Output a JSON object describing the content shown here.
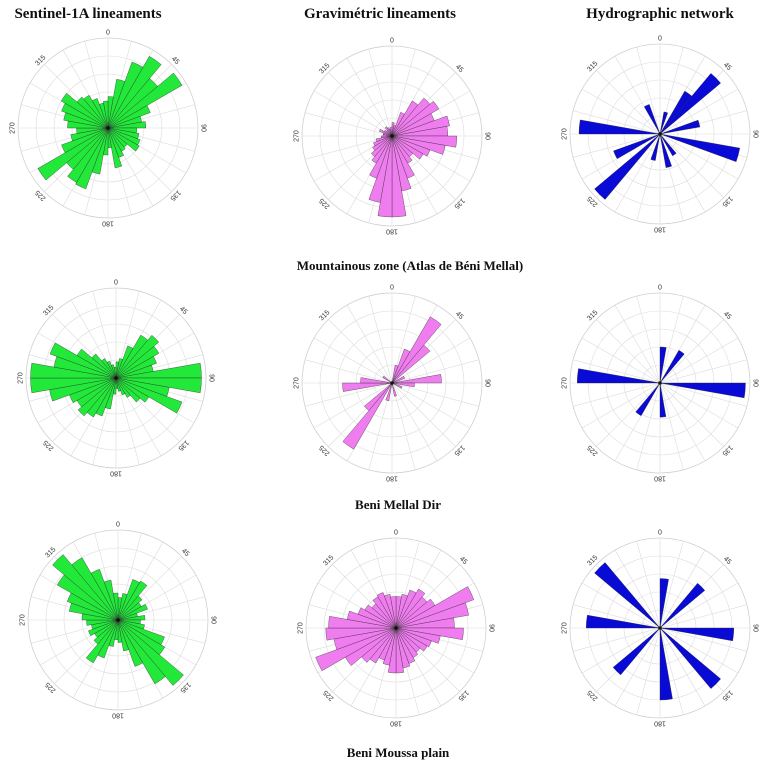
{
  "columns": [
    {
      "title": "Sentinel-1A lineaments",
      "color": "#22e83a"
    },
    {
      "title": "Gravimétric lineaments",
      "color": "#f07df0"
    },
    {
      "title": "Hydrographic network",
      "color": "#0a0ad6"
    }
  ],
  "zones": [
    {
      "label": "Mountainous zone (Atlas de Béni Mellal)"
    },
    {
      "label": "Beni Mellal  Dir"
    },
    {
      "label": "Beni Moussa plain"
    }
  ],
  "angle_ticks": [
    "0",
    "45",
    "90",
    "135",
    "180",
    "225",
    "270",
    "315"
  ],
  "chart_data": [
    {
      "type": "rose",
      "row": 0,
      "col": 0,
      "bin_width_deg": 10,
      "petals": [
        {
          "angle": 5,
          "value": 0.35
        },
        {
          "angle": 15,
          "value": 0.55
        },
        {
          "angle": 25,
          "value": 0.78
        },
        {
          "angle": 35,
          "value": 0.92
        },
        {
          "angle": 45,
          "value": 0.72
        },
        {
          "angle": 55,
          "value": 0.95
        },
        {
          "angle": 65,
          "value": 0.5
        },
        {
          "angle": 75,
          "value": 0.38
        },
        {
          "angle": 85,
          "value": 0.42
        },
        {
          "angle": 95,
          "value": 0.32
        },
        {
          "angle": 105,
          "value": 0.35
        },
        {
          "angle": 115,
          "value": 0.38
        },
        {
          "angle": 125,
          "value": 0.4
        },
        {
          "angle": 135,
          "value": 0.28
        },
        {
          "angle": 145,
          "value": 0.3
        },
        {
          "angle": 155,
          "value": 0.35
        },
        {
          "angle": 165,
          "value": 0.45
        },
        {
          "angle": 175,
          "value": 0.22
        },
        {
          "angle": 185,
          "value": 0.3
        },
        {
          "angle": 195,
          "value": 0.52
        },
        {
          "angle": 205,
          "value": 0.72
        },
        {
          "angle": 215,
          "value": 0.7
        },
        {
          "angle": 225,
          "value": 0.6
        },
        {
          "angle": 235,
          "value": 0.9
        },
        {
          "angle": 245,
          "value": 0.55
        },
        {
          "angle": 255,
          "value": 0.42
        },
        {
          "angle": 265,
          "value": 0.35
        },
        {
          "angle": 275,
          "value": 0.45
        },
        {
          "angle": 285,
          "value": 0.5
        },
        {
          "angle": 295,
          "value": 0.55
        },
        {
          "angle": 305,
          "value": 0.6
        },
        {
          "angle": 315,
          "value": 0.45
        },
        {
          "angle": 325,
          "value": 0.42
        },
        {
          "angle": 335,
          "value": 0.35
        },
        {
          "angle": 345,
          "value": 0.28
        },
        {
          "angle": 355,
          "value": 0.3
        }
      ]
    },
    {
      "type": "rose",
      "row": 0,
      "col": 1,
      "bin_width_deg": 10,
      "petals": [
        {
          "angle": 5,
          "value": 0.15
        },
        {
          "angle": 15,
          "value": 0.12
        },
        {
          "angle": 25,
          "value": 0.28
        },
        {
          "angle": 35,
          "value": 0.45
        },
        {
          "angle": 45,
          "value": 0.55
        },
        {
          "angle": 55,
          "value": 0.6
        },
        {
          "angle": 65,
          "value": 0.5
        },
        {
          "angle": 75,
          "value": 0.65
        },
        {
          "angle": 85,
          "value": 0.62
        },
        {
          "angle": 95,
          "value": 0.72
        },
        {
          "angle": 105,
          "value": 0.6
        },
        {
          "angle": 115,
          "value": 0.45
        },
        {
          "angle": 125,
          "value": 0.4
        },
        {
          "angle": 135,
          "value": 0.3
        },
        {
          "angle": 145,
          "value": 0.35
        },
        {
          "angle": 155,
          "value": 0.5
        },
        {
          "angle": 165,
          "value": 0.62
        },
        {
          "angle": 175,
          "value": 0.9
        },
        {
          "angle": 185,
          "value": 0.9
        },
        {
          "angle": 195,
          "value": 0.75
        },
        {
          "angle": 205,
          "value": 0.5
        },
        {
          "angle": 215,
          "value": 0.35
        },
        {
          "angle": 225,
          "value": 0.3
        },
        {
          "angle": 235,
          "value": 0.25
        },
        {
          "angle": 245,
          "value": 0.22
        },
        {
          "angle": 255,
          "value": 0.18
        },
        {
          "angle": 265,
          "value": 0.12
        },
        {
          "angle": 275,
          "value": 0.1
        },
        {
          "angle": 285,
          "value": 0.1
        },
        {
          "angle": 295,
          "value": 0.15
        },
        {
          "angle": 305,
          "value": 0.1
        },
        {
          "angle": 315,
          "value": 0.08
        },
        {
          "angle": 325,
          "value": 0.12
        },
        {
          "angle": 335,
          "value": 0.1
        },
        {
          "angle": 345,
          "value": 0.08
        },
        {
          "angle": 355,
          "value": 0.1
        }
      ]
    },
    {
      "type": "rose",
      "row": 0,
      "col": 2,
      "bin_width_deg": 10,
      "petals": [
        {
          "angle": 15,
          "value": 0.25
        },
        {
          "angle": 35,
          "value": 0.55
        },
        {
          "angle": 45,
          "value": 0.88
        },
        {
          "angle": 75,
          "value": 0.45
        },
        {
          "angle": 105,
          "value": 0.9
        },
        {
          "angle": 145,
          "value": 0.28
        },
        {
          "angle": 165,
          "value": 0.38
        },
        {
          "angle": 195,
          "value": 0.3
        },
        {
          "angle": 225,
          "value": 0.95
        },
        {
          "angle": 245,
          "value": 0.55
        },
        {
          "angle": 275,
          "value": 0.9
        },
        {
          "angle": 335,
          "value": 0.35
        }
      ]
    },
    {
      "type": "rose",
      "row": 1,
      "col": 0,
      "bin_width_deg": 10,
      "petals": [
        {
          "angle": 5,
          "value": 0.18
        },
        {
          "angle": 15,
          "value": 0.22
        },
        {
          "angle": 25,
          "value": 0.38
        },
        {
          "angle": 35,
          "value": 0.55
        },
        {
          "angle": 45,
          "value": 0.62
        },
        {
          "angle": 55,
          "value": 0.55
        },
        {
          "angle": 65,
          "value": 0.48
        },
        {
          "angle": 75,
          "value": 0.42
        },
        {
          "angle": 85,
          "value": 0.95
        },
        {
          "angle": 95,
          "value": 0.95
        },
        {
          "angle": 105,
          "value": 0.6
        },
        {
          "angle": 115,
          "value": 0.78
        },
        {
          "angle": 125,
          "value": 0.42
        },
        {
          "angle": 135,
          "value": 0.35
        },
        {
          "angle": 145,
          "value": 0.25
        },
        {
          "angle": 155,
          "value": 0.2
        },
        {
          "angle": 165,
          "value": 0.15
        },
        {
          "angle": 175,
          "value": 0.12
        },
        {
          "angle": 185,
          "value": 0.18
        },
        {
          "angle": 195,
          "value": 0.35
        },
        {
          "angle": 205,
          "value": 0.45
        },
        {
          "angle": 215,
          "value": 0.5
        },
        {
          "angle": 225,
          "value": 0.55
        },
        {
          "angle": 235,
          "value": 0.5
        },
        {
          "angle": 245,
          "value": 0.55
        },
        {
          "angle": 255,
          "value": 0.75
        },
        {
          "angle": 265,
          "value": 0.95
        },
        {
          "angle": 275,
          "value": 0.95
        },
        {
          "angle": 285,
          "value": 0.7
        },
        {
          "angle": 295,
          "value": 0.78
        },
        {
          "angle": 305,
          "value": 0.5
        },
        {
          "angle": 315,
          "value": 0.35
        },
        {
          "angle": 325,
          "value": 0.25
        },
        {
          "angle": 335,
          "value": 0.2
        },
        {
          "angle": 345,
          "value": 0.15
        },
        {
          "angle": 355,
          "value": 0.12
        }
      ]
    },
    {
      "type": "rose",
      "row": 1,
      "col": 1,
      "bin_width_deg": 10,
      "petals": [
        {
          "angle": 15,
          "value": 0.2
        },
        {
          "angle": 25,
          "value": 0.4
        },
        {
          "angle": 35,
          "value": 0.85
        },
        {
          "angle": 45,
          "value": 0.55
        },
        {
          "angle": 65,
          "value": 0.15
        },
        {
          "angle": 85,
          "value": 0.55
        },
        {
          "angle": 95,
          "value": 0.25
        },
        {
          "angle": 115,
          "value": 0.12
        },
        {
          "angle": 165,
          "value": 0.15
        },
        {
          "angle": 195,
          "value": 0.2
        },
        {
          "angle": 215,
          "value": 0.85
        },
        {
          "angle": 225,
          "value": 0.4
        },
        {
          "angle": 265,
          "value": 0.55
        },
        {
          "angle": 275,
          "value": 0.35
        },
        {
          "angle": 305,
          "value": 0.12
        }
      ]
    },
    {
      "type": "rose",
      "row": 1,
      "col": 2,
      "bin_width_deg": 10,
      "petals": [
        {
          "angle": 5,
          "value": 0.4
        },
        {
          "angle": 35,
          "value": 0.42
        },
        {
          "angle": 95,
          "value": 0.95
        },
        {
          "angle": 175,
          "value": 0.38
        },
        {
          "angle": 215,
          "value": 0.42
        },
        {
          "angle": 275,
          "value": 0.92
        }
      ]
    },
    {
      "type": "rose",
      "row": 2,
      "col": 0,
      "bin_width_deg": 10,
      "petals": [
        {
          "angle": 5,
          "value": 0.25
        },
        {
          "angle": 15,
          "value": 0.3
        },
        {
          "angle": 25,
          "value": 0.48
        },
        {
          "angle": 35,
          "value": 0.5
        },
        {
          "angle": 45,
          "value": 0.35
        },
        {
          "angle": 55,
          "value": 0.3
        },
        {
          "angle": 65,
          "value": 0.35
        },
        {
          "angle": 75,
          "value": 0.22
        },
        {
          "angle": 85,
          "value": 0.3
        },
        {
          "angle": 95,
          "value": 0.25
        },
        {
          "angle": 105,
          "value": 0.3
        },
        {
          "angle": 115,
          "value": 0.55
        },
        {
          "angle": 125,
          "value": 0.6
        },
        {
          "angle": 135,
          "value": 0.95
        },
        {
          "angle": 145,
          "value": 0.82
        },
        {
          "angle": 155,
          "value": 0.55
        },
        {
          "angle": 165,
          "value": 0.35
        },
        {
          "angle": 175,
          "value": 0.25
        },
        {
          "angle": 185,
          "value": 0.22
        },
        {
          "angle": 195,
          "value": 0.3
        },
        {
          "angle": 205,
          "value": 0.45
        },
        {
          "angle": 215,
          "value": 0.55
        },
        {
          "angle": 225,
          "value": 0.35
        },
        {
          "angle": 235,
          "value": 0.3
        },
        {
          "angle": 245,
          "value": 0.35
        },
        {
          "angle": 255,
          "value": 0.3
        },
        {
          "angle": 265,
          "value": 0.35
        },
        {
          "angle": 275,
          "value": 0.4
        },
        {
          "angle": 285,
          "value": 0.55
        },
        {
          "angle": 295,
          "value": 0.6
        },
        {
          "angle": 305,
          "value": 0.78
        },
        {
          "angle": 315,
          "value": 0.95
        },
        {
          "angle": 325,
          "value": 0.8
        },
        {
          "angle": 335,
          "value": 0.6
        },
        {
          "angle": 345,
          "value": 0.45
        },
        {
          "angle": 355,
          "value": 0.3
        }
      ]
    },
    {
      "type": "rose",
      "row": 2,
      "col": 1,
      "bin_width_deg": 10,
      "petals": [
        {
          "angle": 5,
          "value": 0.35
        },
        {
          "angle": 15,
          "value": 0.38
        },
        {
          "angle": 25,
          "value": 0.45
        },
        {
          "angle": 35,
          "value": 0.5
        },
        {
          "angle": 45,
          "value": 0.45
        },
        {
          "angle": 55,
          "value": 0.5
        },
        {
          "angle": 65,
          "value": 0.92
        },
        {
          "angle": 75,
          "value": 0.82
        },
        {
          "angle": 85,
          "value": 0.65
        },
        {
          "angle": 95,
          "value": 0.75
        },
        {
          "angle": 105,
          "value": 0.5
        },
        {
          "angle": 115,
          "value": 0.42
        },
        {
          "angle": 125,
          "value": 0.4
        },
        {
          "angle": 135,
          "value": 0.35
        },
        {
          "angle": 145,
          "value": 0.38
        },
        {
          "angle": 155,
          "value": 0.42
        },
        {
          "angle": 165,
          "value": 0.45
        },
        {
          "angle": 175,
          "value": 0.5
        },
        {
          "angle": 185,
          "value": 0.5
        },
        {
          "angle": 195,
          "value": 0.42
        },
        {
          "angle": 205,
          "value": 0.38
        },
        {
          "angle": 215,
          "value": 0.45
        },
        {
          "angle": 225,
          "value": 0.5
        },
        {
          "angle": 235,
          "value": 0.65
        },
        {
          "angle": 245,
          "value": 0.95
        },
        {
          "angle": 255,
          "value": 0.7
        },
        {
          "angle": 265,
          "value": 0.78
        },
        {
          "angle": 275,
          "value": 0.75
        },
        {
          "angle": 285,
          "value": 0.55
        },
        {
          "angle": 295,
          "value": 0.45
        },
        {
          "angle": 305,
          "value": 0.4
        },
        {
          "angle": 315,
          "value": 0.35
        },
        {
          "angle": 325,
          "value": 0.4
        },
        {
          "angle": 335,
          "value": 0.42
        },
        {
          "angle": 345,
          "value": 0.38
        },
        {
          "angle": 355,
          "value": 0.35
        }
      ]
    },
    {
      "type": "rose",
      "row": 2,
      "col": 2,
      "bin_width_deg": 10,
      "petals": [
        {
          "angle": 5,
          "value": 0.55
        },
        {
          "angle": 45,
          "value": 0.65
        },
        {
          "angle": 95,
          "value": 0.82
        },
        {
          "angle": 135,
          "value": 0.88
        },
        {
          "angle": 175,
          "value": 0.8
        },
        {
          "angle": 225,
          "value": 0.68
        },
        {
          "angle": 275,
          "value": 0.82
        },
        {
          "angle": 315,
          "value": 0.95
        }
      ]
    }
  ]
}
